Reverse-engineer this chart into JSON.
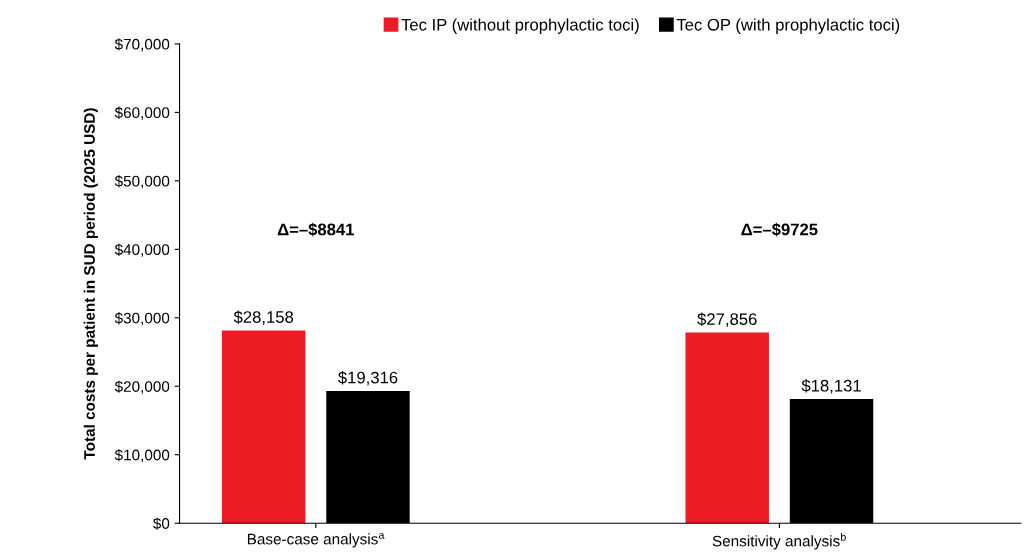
{
  "chart_data": {
    "type": "bar",
    "ylabel": "Total costs per patient in SUD period (2025 USD)",
    "categories": [
      "Base-case analysis$^{a}$",
      "Sensitivity analysis$^{b}$"
    ],
    "series": [
      {
        "name": "Tec IP (without prophylactic toci)",
        "color": "#ed1c24",
        "values": [
          28158,
          27856
        ],
        "value_labels": [
          "$28,158",
          "$27,856"
        ]
      },
      {
        "name": "Tec OP (with prophylactic toci)",
        "color": "#000000",
        "values": [
          19316,
          18131
        ],
        "value_labels": [
          "$19,316",
          "$18,131"
        ]
      }
    ],
    "ylim": [
      0,
      70000
    ],
    "yticks": [
      {
        "value": 0,
        "label": "$0"
      },
      {
        "value": 10000,
        "label": "$10,000"
      },
      {
        "value": 20000,
        "label": "$20,000"
      },
      {
        "value": 30000,
        "label": "$30,000"
      },
      {
        "value": 40000,
        "label": "$40,000"
      },
      {
        "value": 50000,
        "label": "$50,000"
      },
      {
        "value": 60000,
        "label": "$60,000"
      },
      {
        "value": 70000,
        "label": "$70,000"
      }
    ],
    "annotations": [
      "Δ=–$8841",
      "Δ=–$9725"
    ],
    "legend": "top",
    "grid": false
  }
}
